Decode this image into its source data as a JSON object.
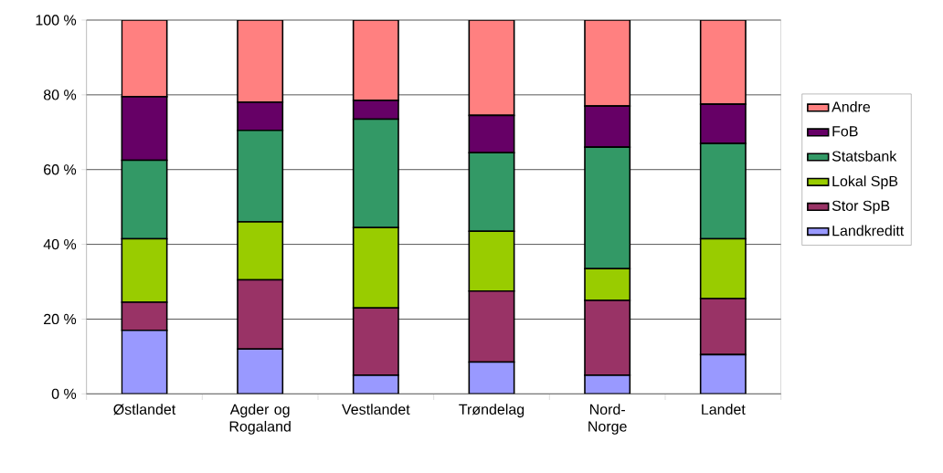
{
  "chart_data": {
    "type": "bar",
    "stacked": true,
    "categories": [
      "Østlandet",
      "Agder og Rogaland",
      "Vestlandet",
      "Trøndelag",
      "Nord-Norge",
      "Landet"
    ],
    "series": [
      {
        "name": "Landkreditt",
        "color": "#9999ff",
        "values": [
          17,
          12,
          5,
          8.5,
          5,
          10.5
        ]
      },
      {
        "name": "Stor SpB",
        "color": "#993366",
        "values": [
          7.5,
          18.5,
          18,
          19,
          20,
          15
        ]
      },
      {
        "name": "Lokal SpB",
        "color": "#99cc00",
        "values": [
          17,
          15.5,
          21.5,
          16,
          8.5,
          16
        ]
      },
      {
        "name": "Statsbank",
        "color": "#339966",
        "values": [
          21,
          24.5,
          29,
          21,
          32.5,
          25.5
        ]
      },
      {
        "name": "FoB",
        "color": "#660066",
        "values": [
          17,
          7.5,
          5,
          10,
          11,
          10.5
        ]
      },
      {
        "name": "Andre",
        "color": "#ff8080",
        "values": [
          20.5,
          22,
          21.5,
          25.5,
          23,
          22.5
        ]
      }
    ],
    "ylim": [
      0,
      100
    ],
    "yticks": [
      {
        "value": 0,
        "label": "0 %"
      },
      {
        "value": 20,
        "label": "20 %"
      },
      {
        "value": 40,
        "label": "40 %"
      },
      {
        "value": 60,
        "label": "60 %"
      },
      {
        "value": 80,
        "label": "80 %"
      },
      {
        "value": 100,
        "label": "100 %"
      }
    ],
    "grid": "y",
    "legend": "right"
  }
}
